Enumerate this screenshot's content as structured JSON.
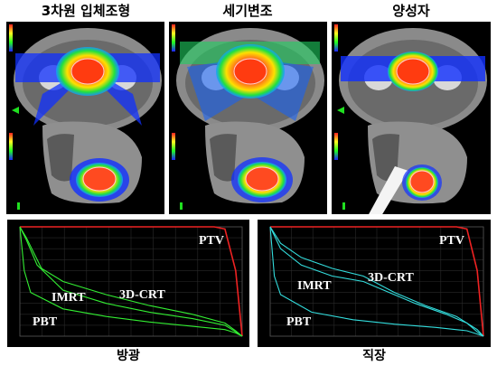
{
  "titles": [
    "3차원 입체조형",
    "세기변조",
    "양성자"
  ],
  "captions": [
    "방광",
    "직장"
  ],
  "colors": {
    "bladder_curve": "#33ee33",
    "rectum_curve": "#33dddd",
    "ptv_curve": "#ee2222"
  },
  "chart_data": [
    {
      "type": "line",
      "organ": "방광",
      "series_labels": [
        "PTV",
        "3D-CRT",
        "IMRT",
        "PBT"
      ],
      "series": [
        {
          "name": "PTV",
          "points": [
            [
              0,
              100
            ],
            [
              90,
              100
            ],
            [
              95,
              98
            ],
            [
              100,
              60
            ],
            [
              103,
              0
            ]
          ]
        },
        {
          "name": "3D-CRT",
          "points": [
            [
              0,
              100
            ],
            [
              3,
              90
            ],
            [
              10,
              62
            ],
            [
              20,
              50
            ],
            [
              40,
              38
            ],
            [
              60,
              28
            ],
            [
              80,
              20
            ],
            [
              95,
              12
            ],
            [
              100,
              5
            ],
            [
              103,
              0
            ]
          ]
        },
        {
          "name": "IMRT",
          "points": [
            [
              0,
              100
            ],
            [
              3,
              88
            ],
            [
              8,
              65
            ],
            [
              20,
              42
            ],
            [
              40,
              30
            ],
            [
              60,
              22
            ],
            [
              80,
              16
            ],
            [
              95,
              10
            ],
            [
              100,
              4
            ],
            [
              103,
              0
            ]
          ]
        },
        {
          "name": "PBT",
          "points": [
            [
              0,
              100
            ],
            [
              2,
              60
            ],
            [
              5,
              40
            ],
            [
              20,
              25
            ],
            [
              40,
              18
            ],
            [
              60,
              13
            ],
            [
              80,
              9
            ],
            [
              95,
              6
            ],
            [
              100,
              3
            ],
            [
              103,
              0
            ]
          ]
        }
      ]
    },
    {
      "type": "line",
      "organ": "직장",
      "series_labels": [
        "PTV",
        "3D-CRT",
        "IMRT",
        "PBT"
      ],
      "series": [
        {
          "name": "PTV",
          "points": [
            [
              0,
              100
            ],
            [
              90,
              100
            ],
            [
              95,
              98
            ],
            [
              100,
              60
            ],
            [
              103,
              0
            ]
          ]
        },
        {
          "name": "3D-CRT",
          "points": [
            [
              0,
              100
            ],
            [
              5,
              85
            ],
            [
              15,
              72
            ],
            [
              30,
              62
            ],
            [
              45,
              55
            ],
            [
              60,
              40
            ],
            [
              75,
              28
            ],
            [
              90,
              18
            ],
            [
              100,
              6
            ],
            [
              103,
              0
            ]
          ]
        },
        {
          "name": "IMRT",
          "points": [
            [
              0,
              100
            ],
            [
              5,
              80
            ],
            [
              15,
              65
            ],
            [
              30,
              55
            ],
            [
              45,
              50
            ],
            [
              55,
              42
            ],
            [
              70,
              30
            ],
            [
              85,
              20
            ],
            [
              95,
              12
            ],
            [
              100,
              4
            ],
            [
              103,
              0
            ]
          ]
        },
        {
          "name": "PBT",
          "points": [
            [
              0,
              100
            ],
            [
              2,
              55
            ],
            [
              5,
              38
            ],
            [
              20,
              22
            ],
            [
              40,
              15
            ],
            [
              60,
              11
            ],
            [
              80,
              8
            ],
            [
              95,
              5
            ],
            [
              100,
              2
            ],
            [
              103,
              0
            ]
          ]
        }
      ]
    }
  ]
}
